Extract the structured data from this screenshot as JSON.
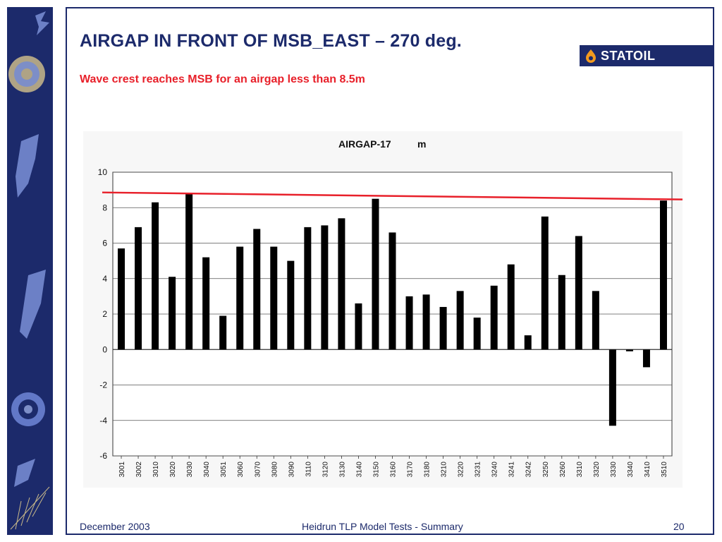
{
  "slide": {
    "title": "AIRGAP IN FRONT OF MSB_EAST – 270 deg.",
    "subtitle": "Wave crest reaches MSB for an airgap less than 8.5m",
    "logo_text": "STATOIL",
    "footer_date": "December 2003",
    "footer_center": "Heidrun TLP Model Tests - Summary",
    "page_number": "20"
  },
  "colors": {
    "navy": "#1c2a6b",
    "red": "#e8202a",
    "bar": "#000000"
  },
  "chart_data": {
    "type": "bar",
    "title": "AIRGAP-17",
    "unit": "m",
    "categories": [
      "3001",
      "3002",
      "3010",
      "3020",
      "3030",
      "3040",
      "3051",
      "3060",
      "3070",
      "3080",
      "3090",
      "3110",
      "3120",
      "3130",
      "3140",
      "3150",
      "3160",
      "3170",
      "3180",
      "3210",
      "3220",
      "3231",
      "3240",
      "3241",
      "3242",
      "3250",
      "3260",
      "3310",
      "3320",
      "3330",
      "3340",
      "3410",
      "3510"
    ],
    "values": [
      5.7,
      6.9,
      8.3,
      4.1,
      8.8,
      5.2,
      1.9,
      5.8,
      6.8,
      5.8,
      5.0,
      6.9,
      7.0,
      7.4,
      2.6,
      8.5,
      6.6,
      3.0,
      3.1,
      2.4,
      3.3,
      1.8,
      3.6,
      4.8,
      0.8,
      7.5,
      4.2,
      6.4,
      3.3,
      -4.3,
      -0.1,
      -1.0,
      8.4
    ],
    "ylim": [
      -6,
      10
    ],
    "yticks": [
      -6,
      -4,
      -2,
      0,
      2,
      4,
      6,
      8,
      10
    ],
    "grid": true,
    "reference_line": {
      "value": 8.5,
      "color": "#e8202a"
    }
  }
}
